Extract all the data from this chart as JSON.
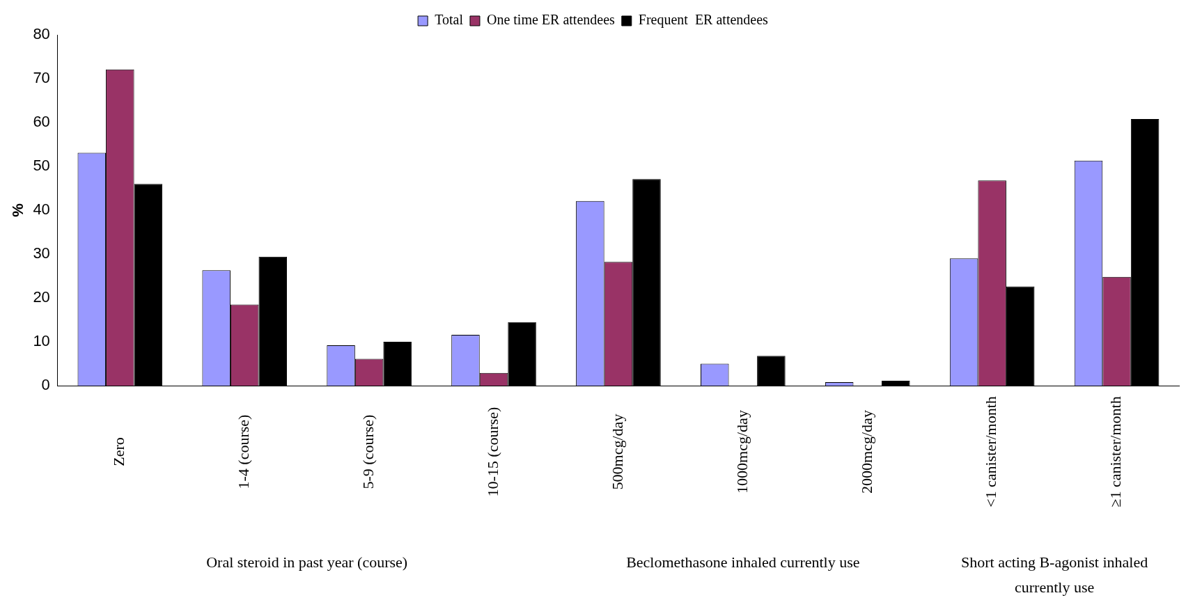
{
  "chart_data": {
    "type": "bar",
    "ylabel": "%",
    "categories": [
      "Zero",
      "1-4 (course)",
      "5-9 (course)",
      "10-15 (course)",
      "500mcg/day",
      "1000mcg/day",
      "2000mcg/day",
      "<1 canister/month",
      "≥1 canister/month"
    ],
    "series": [
      {
        "name": "Total",
        "color": "#9999ff",
        "values": [
          53.1,
          26.3,
          9.2,
          11.6,
          42.1,
          5.0,
          0.8,
          29.0,
          51.3
        ]
      },
      {
        "name": "One time ER attendees",
        "color": "#993366",
        "values": [
          72.1,
          18.5,
          6.1,
          2.9,
          28.2,
          null,
          null,
          46.8,
          24.8
        ]
      },
      {
        "name": "Frequent  ER attendees",
        "color": "#000000",
        "values": [
          46.0,
          29.4,
          10.0,
          14.5,
          47.1,
          6.8,
          1.1,
          22.6,
          60.8
        ]
      }
    ],
    "ylim": [
      0,
      80
    ],
    "yticks": [
      0,
      10,
      20,
      30,
      40,
      50,
      60,
      70,
      80
    ],
    "grid": false,
    "legend": "top",
    "annotations": [
      "Oral steroid in past year (course)",
      "Beclomethasone inhaled currently use",
      "Short acting B-agonist inhaled currently use"
    ]
  }
}
